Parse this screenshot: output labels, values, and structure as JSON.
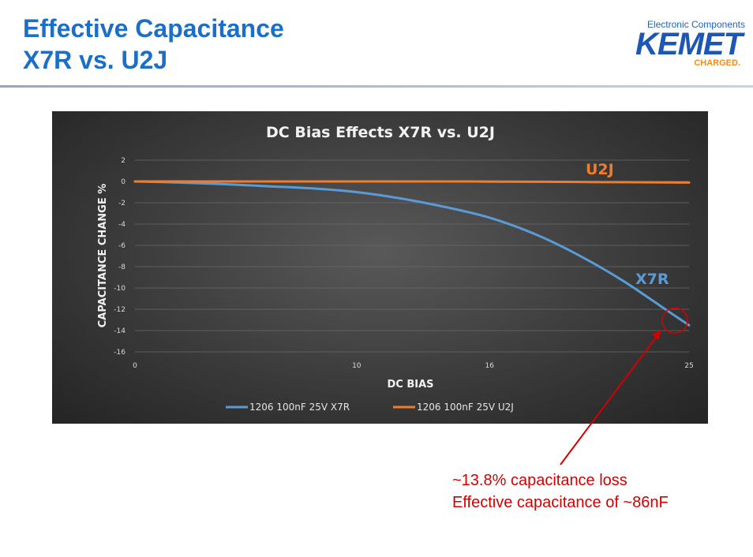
{
  "slide": {
    "title_line1": "Effective Capacitance",
    "title_line2": "X7R vs. U2J"
  },
  "logo": {
    "tagline": "Electronic Components",
    "brand": "KEMET",
    "slogan": "CHARGED."
  },
  "chart_data": {
    "type": "line",
    "title": "DC Bias Effects  X7R vs. U2J",
    "xlabel": "DC BIAS",
    "ylabel": "CAPACITANCE CHANGE %",
    "x_ticks": [
      0,
      10,
      16,
      25
    ],
    "x_tick_labels": [
      "0",
      "10",
      "16",
      "25"
    ],
    "xlim": [
      0,
      25
    ],
    "y_ticks": [
      2,
      0,
      -2,
      -4,
      -6,
      -8,
      -10,
      -12,
      -14,
      -16
    ],
    "y_tick_labels": [
      "2",
      "0",
      "-2",
      "-4",
      "-6",
      "-8",
      "-10",
      "-12",
      "-14",
      "-16"
    ],
    "ylim": [
      -16,
      2
    ],
    "grid": true,
    "legend_position": "bottom",
    "series": [
      {
        "name": "1206 100nF 25V X7R",
        "color": "#5b9bd5",
        "x": [
          0,
          2,
          4,
          6,
          8,
          10,
          12,
          14,
          16,
          18,
          20,
          22,
          24,
          25
        ],
        "y": [
          0,
          -0.1,
          -0.25,
          -0.45,
          -0.65,
          -1.0,
          -1.6,
          -2.4,
          -3.4,
          -4.9,
          -6.9,
          -9.3,
          -12.1,
          -13.5
        ]
      },
      {
        "name": "1206 100nF 25V U2J",
        "color": "#ed7d31",
        "x": [
          0,
          5,
          10,
          15,
          20,
          25
        ],
        "y": [
          0,
          0,
          0,
          0,
          -0.05,
          -0.1
        ]
      }
    ],
    "annotations": [
      {
        "text": "U2J",
        "color": "#ed7d31"
      },
      {
        "text": "X7R",
        "color": "#5b9bd5"
      }
    ]
  },
  "callout": {
    "line1": "~13.8% capacitance loss",
    "line2": "Effective capacitance of ~86nF",
    "color": "#d40000"
  }
}
